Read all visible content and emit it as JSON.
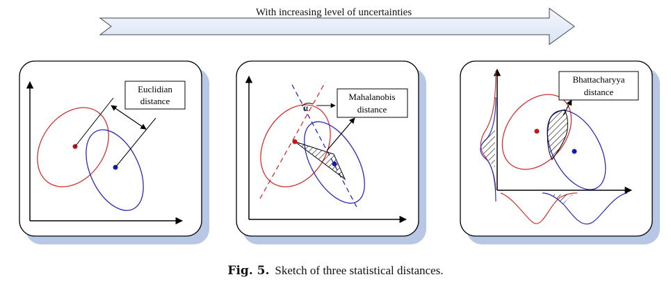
{
  "banner": {
    "text": "With increasing level of uncertainties"
  },
  "panels": [
    {
      "label_line1": "Euclidian",
      "label_line2": "distance"
    },
    {
      "label_line1": "Mahalanobis",
      "label_line2": "distance",
      "angle_symbol": "α"
    },
    {
      "label_line1": "Bhattacharyya",
      "label_line2": "distance"
    }
  ],
  "caption": {
    "number": "Fig. 5.",
    "text": "Sketch of three statistical distances."
  },
  "colors": {
    "red": "#d23030",
    "blue": "#2a2ab8",
    "arrow_fill": "#e6eefa",
    "shadow": "#b8c8e4"
  }
}
